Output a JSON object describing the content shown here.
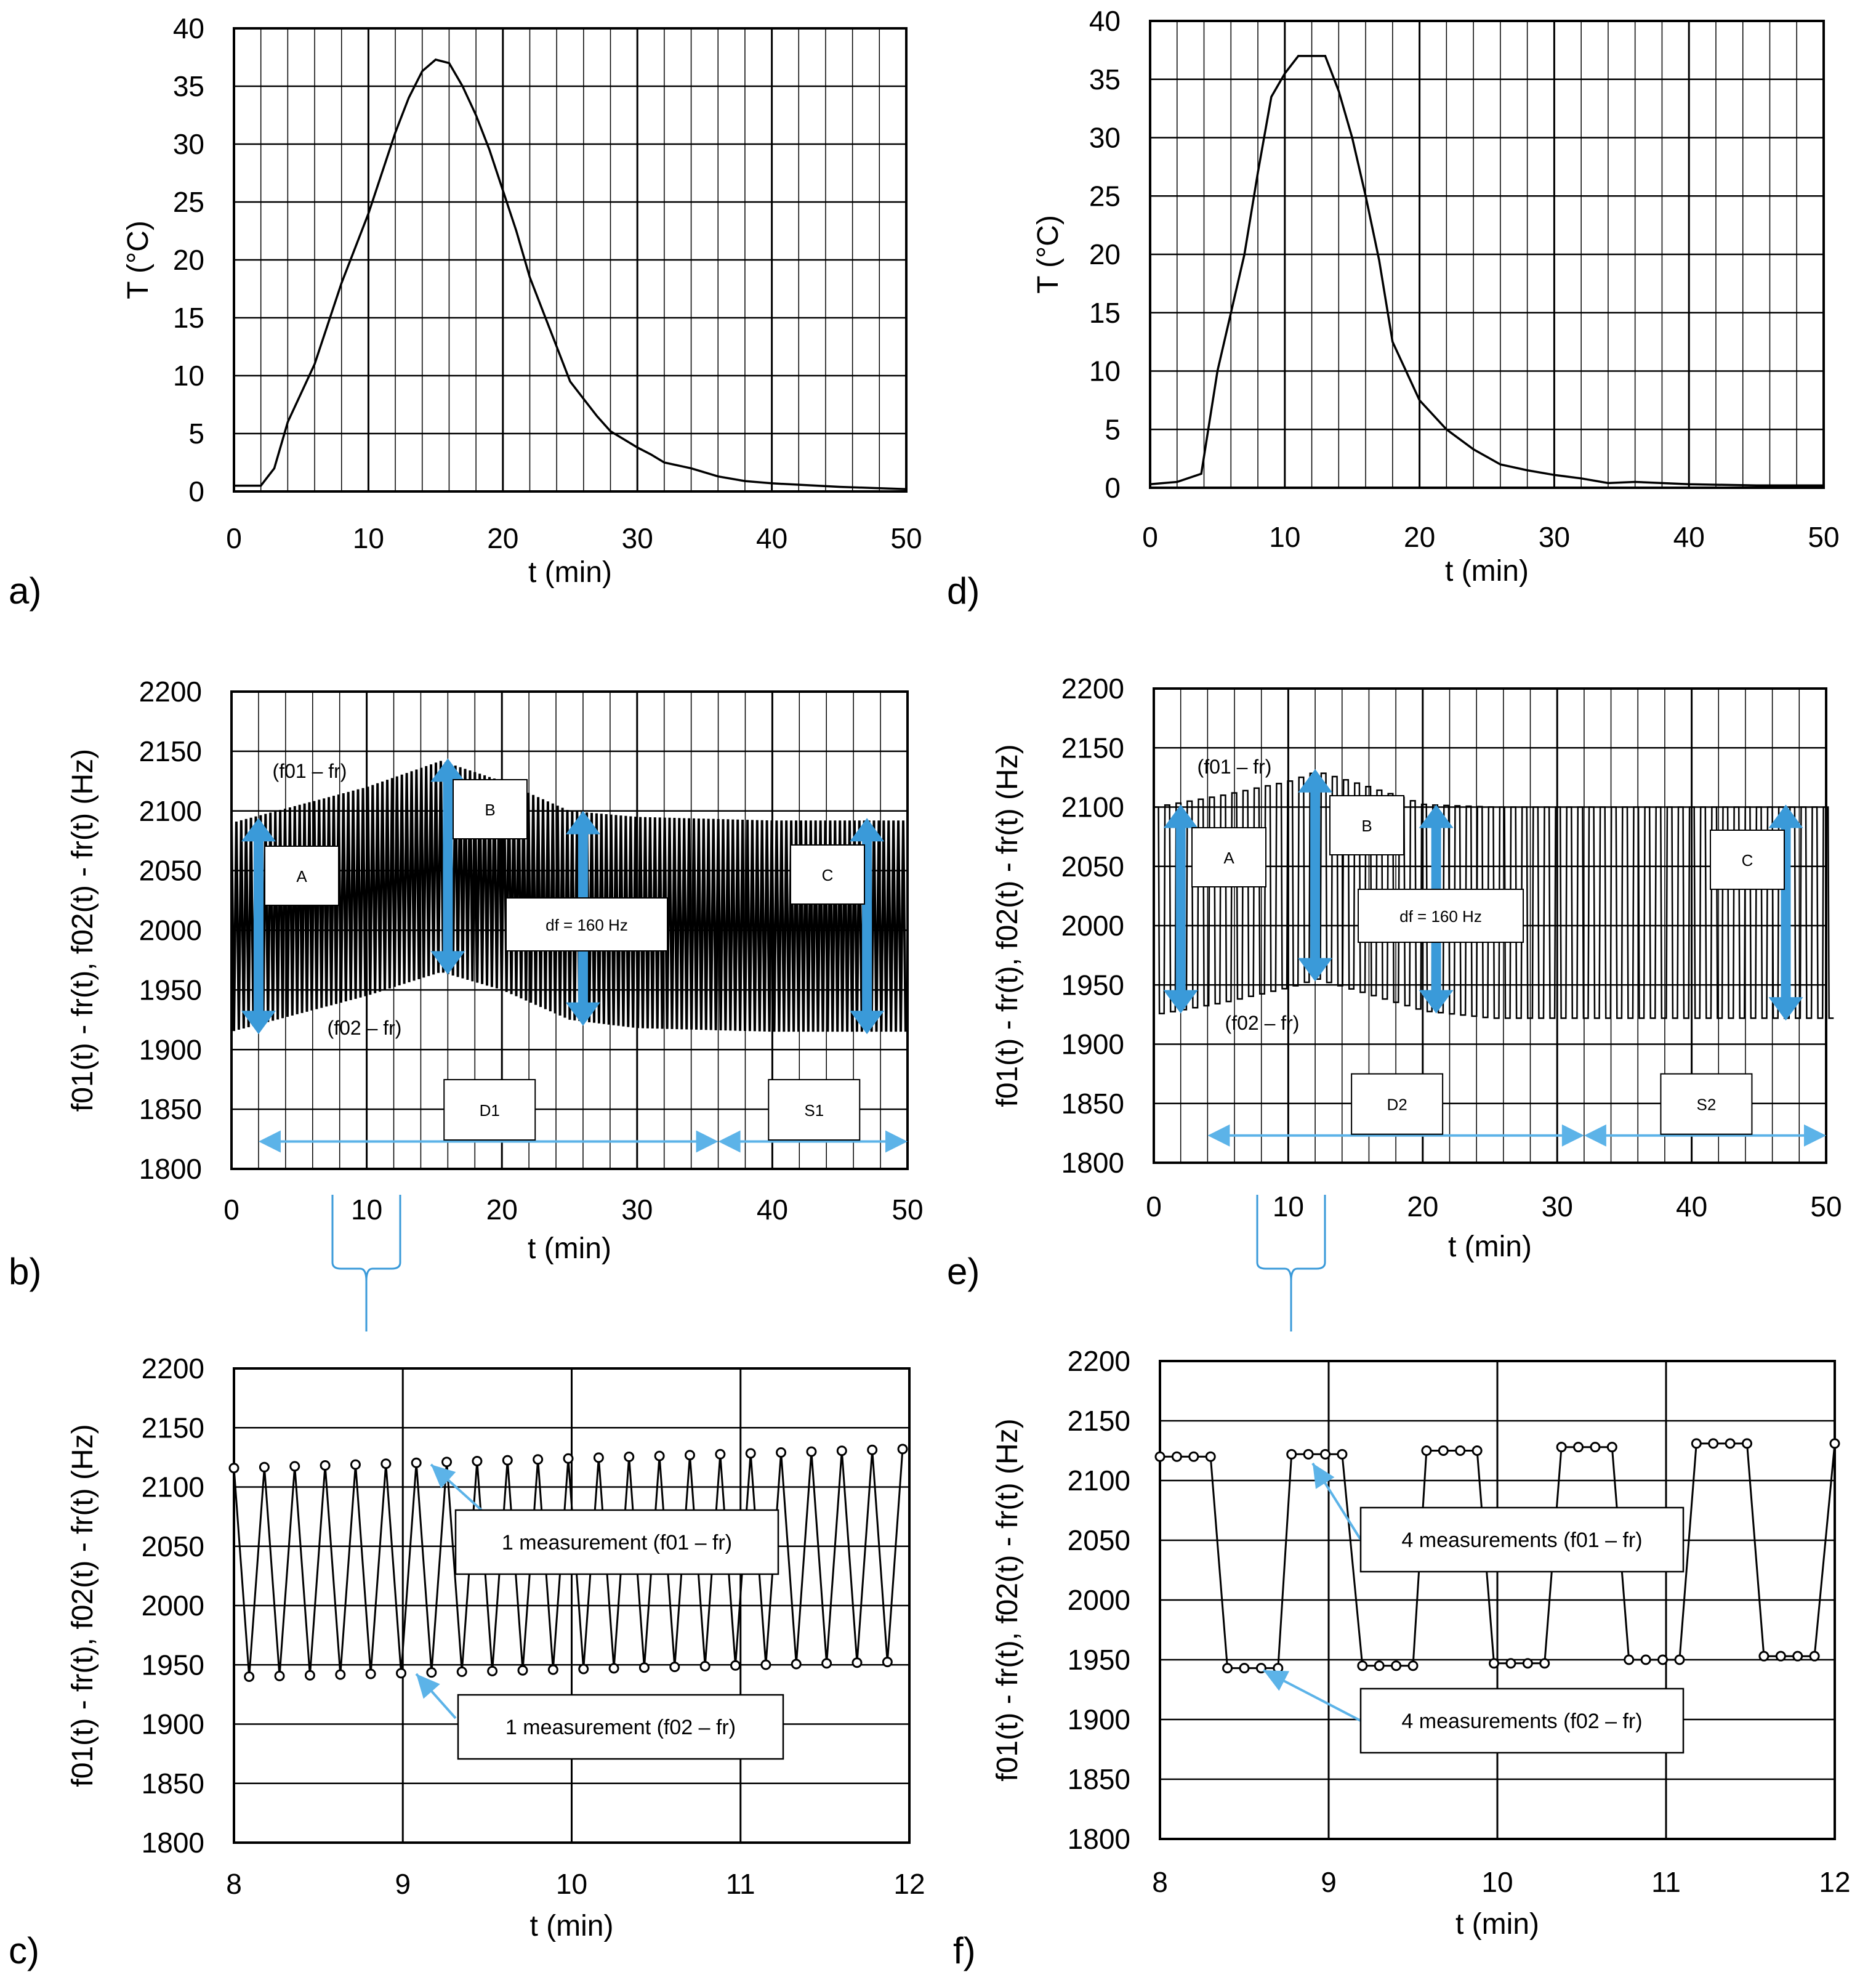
{
  "panel_labels": [
    "a)",
    "b)",
    "c)",
    "d)",
    "e)",
    "f)"
  ],
  "chart_data": [
    {
      "id": "a",
      "type": "line",
      "xlabel": "t (min)",
      "ylabel": "T (°C)",
      "xlim": [
        0,
        50
      ],
      "ylim": [
        0,
        40
      ],
      "xticks": [
        0,
        10,
        20,
        30,
        40,
        50
      ],
      "yticks": [
        0,
        5,
        10,
        15,
        20,
        25,
        30,
        35,
        40
      ],
      "grid": true,
      "x": [
        0,
        2,
        3,
        4,
        6,
        8,
        10,
        12,
        13,
        14,
        15,
        16,
        17,
        18,
        19,
        20,
        21,
        22,
        23,
        24,
        25,
        26,
        27,
        28,
        29,
        30,
        31,
        32,
        34,
        36,
        38,
        40,
        45,
        50
      ],
      "y": [
        0.5,
        0.5,
        2,
        6,
        11,
        18,
        24,
        31,
        34,
        36.3,
        37.3,
        37,
        35,
        32.5,
        29.5,
        26,
        22.5,
        18.5,
        15.5,
        12.5,
        9.5,
        8,
        6.5,
        5.2,
        4.5,
        3.8,
        3.2,
        2.5,
        2,
        1.3,
        0.9,
        0.7,
        0.4,
        0.2
      ]
    },
    {
      "id": "b",
      "type": "line",
      "xlabel": "t (min)",
      "ylabel": "f01(t) - fr(t), f02(t) - fr(t) (Hz)",
      "xlim": [
        0,
        50
      ],
      "ylim": [
        1800,
        2200
      ],
      "xticks": [
        0,
        10,
        20,
        30,
        40,
        50
      ],
      "yticks": [
        1800,
        1850,
        1900,
        1950,
        2000,
        2050,
        2100,
        2150,
        2200
      ],
      "grid": true,
      "series": [
        {
          "name": "(f01 – fr)",
          "x": [
            0,
            5,
            10,
            15.5,
            20,
            25,
            30,
            40,
            50
          ],
          "values": [
            2090,
            2105,
            2120,
            2142,
            2125,
            2100,
            2095,
            2092,
            2092
          ]
        },
        {
          "name": "(f02 – fr)",
          "x": [
            0,
            5,
            10,
            15.5,
            20,
            25,
            30,
            40,
            50
          ],
          "values": [
            1915,
            1930,
            1945,
            1965,
            1950,
            1925,
            1918,
            1915,
            1915
          ]
        }
      ],
      "annotations": {
        "arrows": [
          {
            "label": "A",
            "x": 2,
            "from": 1915,
            "to": 2092
          },
          {
            "label": "B",
            "x": 16,
            "from": 1965,
            "to": 2142
          },
          {
            "label": "C",
            "x": 47,
            "from": 1915,
            "to": 2092
          },
          {
            "label": "df = 160 Hz",
            "x": 26,
            "from": 1922,
            "to": 2098
          }
        ],
        "intervals": [
          {
            "label": "D1",
            "from": 2,
            "to": 36
          },
          {
            "label": "S1",
            "from": 36,
            "to": 50
          }
        ]
      }
    },
    {
      "id": "c",
      "type": "line",
      "xlabel": "t (min)",
      "ylabel": "f01(t) - fr(t), f02(t) - fr(t) (Hz)",
      "xlim": [
        8,
        12
      ],
      "ylim": [
        1800,
        2200
      ],
      "xticks": [
        8,
        9,
        10,
        11,
        12
      ],
      "yticks": [
        1800,
        1850,
        1900,
        1950,
        2000,
        2050,
        2100,
        2150,
        2200
      ],
      "grid": true,
      "measurement_period_min": 0.18,
      "series": [
        {
          "name": "(f01 – fr)",
          "x_start": 8.0,
          "values_start": 2116,
          "values_end": 2132
        },
        {
          "name": "(f02 – fr)",
          "x_start": 8.09,
          "values_start": 1940,
          "values_end": 1953
        }
      ],
      "annotations": [
        {
          "label": "1 measurement (f01 – fr)"
        },
        {
          "label": "1 measurement (f02 – fr)"
        }
      ]
    },
    {
      "id": "d",
      "type": "line",
      "xlabel": "t (min)",
      "ylabel": "T (°C)",
      "xlim": [
        0,
        50
      ],
      "ylim": [
        0,
        40
      ],
      "xticks": [
        0,
        10,
        20,
        30,
        40,
        50
      ],
      "yticks": [
        0,
        5,
        10,
        15,
        20,
        25,
        30,
        35,
        40
      ],
      "grid": true,
      "x": [
        0,
        2,
        3.8,
        5,
        6,
        7,
        8,
        9,
        10,
        11,
        12,
        13,
        14,
        15,
        16,
        17,
        18,
        19,
        20,
        22,
        24,
        26,
        28,
        30,
        32,
        34,
        36,
        40,
        45,
        50
      ],
      "y": [
        0.3,
        0.5,
        1.2,
        10,
        15,
        20,
        27,
        33.5,
        35.5,
        37,
        37,
        37,
        34,
        30,
        25,
        19.5,
        12.5,
        10,
        7.5,
        5,
        3.3,
        2,
        1.5,
        1.1,
        0.8,
        0.4,
        0.5,
        0.3,
        0.2,
        0.2
      ]
    },
    {
      "id": "e",
      "type": "line",
      "xlabel": "t (min)",
      "ylabel": "f01(t) - fr(t), f02(t) - fr(t) (Hz)",
      "xlim": [
        0,
        50
      ],
      "ylim": [
        1800,
        2200
      ],
      "xticks": [
        0,
        10,
        20,
        30,
        40,
        50
      ],
      "yticks": [
        1800,
        1850,
        1900,
        1950,
        2000,
        2050,
        2100,
        2150,
        2200
      ],
      "grid": true,
      "series": [
        {
          "name": "(f01 – fr)",
          "x": [
            0,
            5,
            10,
            12,
            15,
            20,
            25,
            30,
            40,
            50
          ],
          "values": [
            2100,
            2110,
            2122,
            2130,
            2120,
            2102,
            2100,
            2100,
            2100,
            2100
          ]
        },
        {
          "name": "(f02 – fr)",
          "x": [
            0,
            5,
            10,
            12,
            15,
            20,
            25,
            30,
            40,
            50
          ],
          "values": [
            1925,
            1935,
            1948,
            1955,
            1945,
            1928,
            1922,
            1922,
            1922,
            1922
          ]
        }
      ],
      "annotations": {
        "arrows": [
          {
            "label": "A",
            "x": 2,
            "from": 1928,
            "to": 2100
          },
          {
            "label": "B",
            "x": 12,
            "from": 1955,
            "to": 2130
          },
          {
            "label": "C",
            "x": 47,
            "from": 1922,
            "to": 2100
          },
          {
            "label": "df = 160 Hz",
            "x": 21,
            "from": 1928,
            "to": 2100
          }
        ],
        "intervals": [
          {
            "label": "D2",
            "from": 4,
            "to": 32
          },
          {
            "label": "S2",
            "from": 32,
            "to": 50
          }
        ]
      }
    },
    {
      "id": "f",
      "type": "line",
      "xlabel": "t (min)",
      "ylabel": "f01(t) - fr(t), f02(t) - fr(t) (Hz)",
      "xlim": [
        8,
        12
      ],
      "ylim": [
        1800,
        2200
      ],
      "xticks": [
        8,
        9,
        10,
        11,
        12
      ],
      "yticks": [
        1800,
        1850,
        1900,
        1950,
        2000,
        2050,
        2100,
        2150,
        2200
      ],
      "grid": true,
      "measurements_per_level": 4,
      "series": [
        {
          "name": "(f01 – fr)",
          "groups_start_x": [
            8.0,
            8.78,
            9.58,
            10.38,
            11.18
          ],
          "values": [
            2120,
            2122,
            2125,
            2128,
            2131
          ]
        },
        {
          "name": "(f02 – fr)",
          "groups_start_x": [
            8.4,
            9.2,
            9.98,
            10.78,
            11.58
          ],
          "values": [
            1943,
            1945,
            1947,
            1950,
            1953
          ]
        }
      ],
      "annotations": [
        {
          "label": "4 measurements (f01 – fr)"
        },
        {
          "label": "4 measurements (f02 – fr)"
        }
      ]
    }
  ]
}
